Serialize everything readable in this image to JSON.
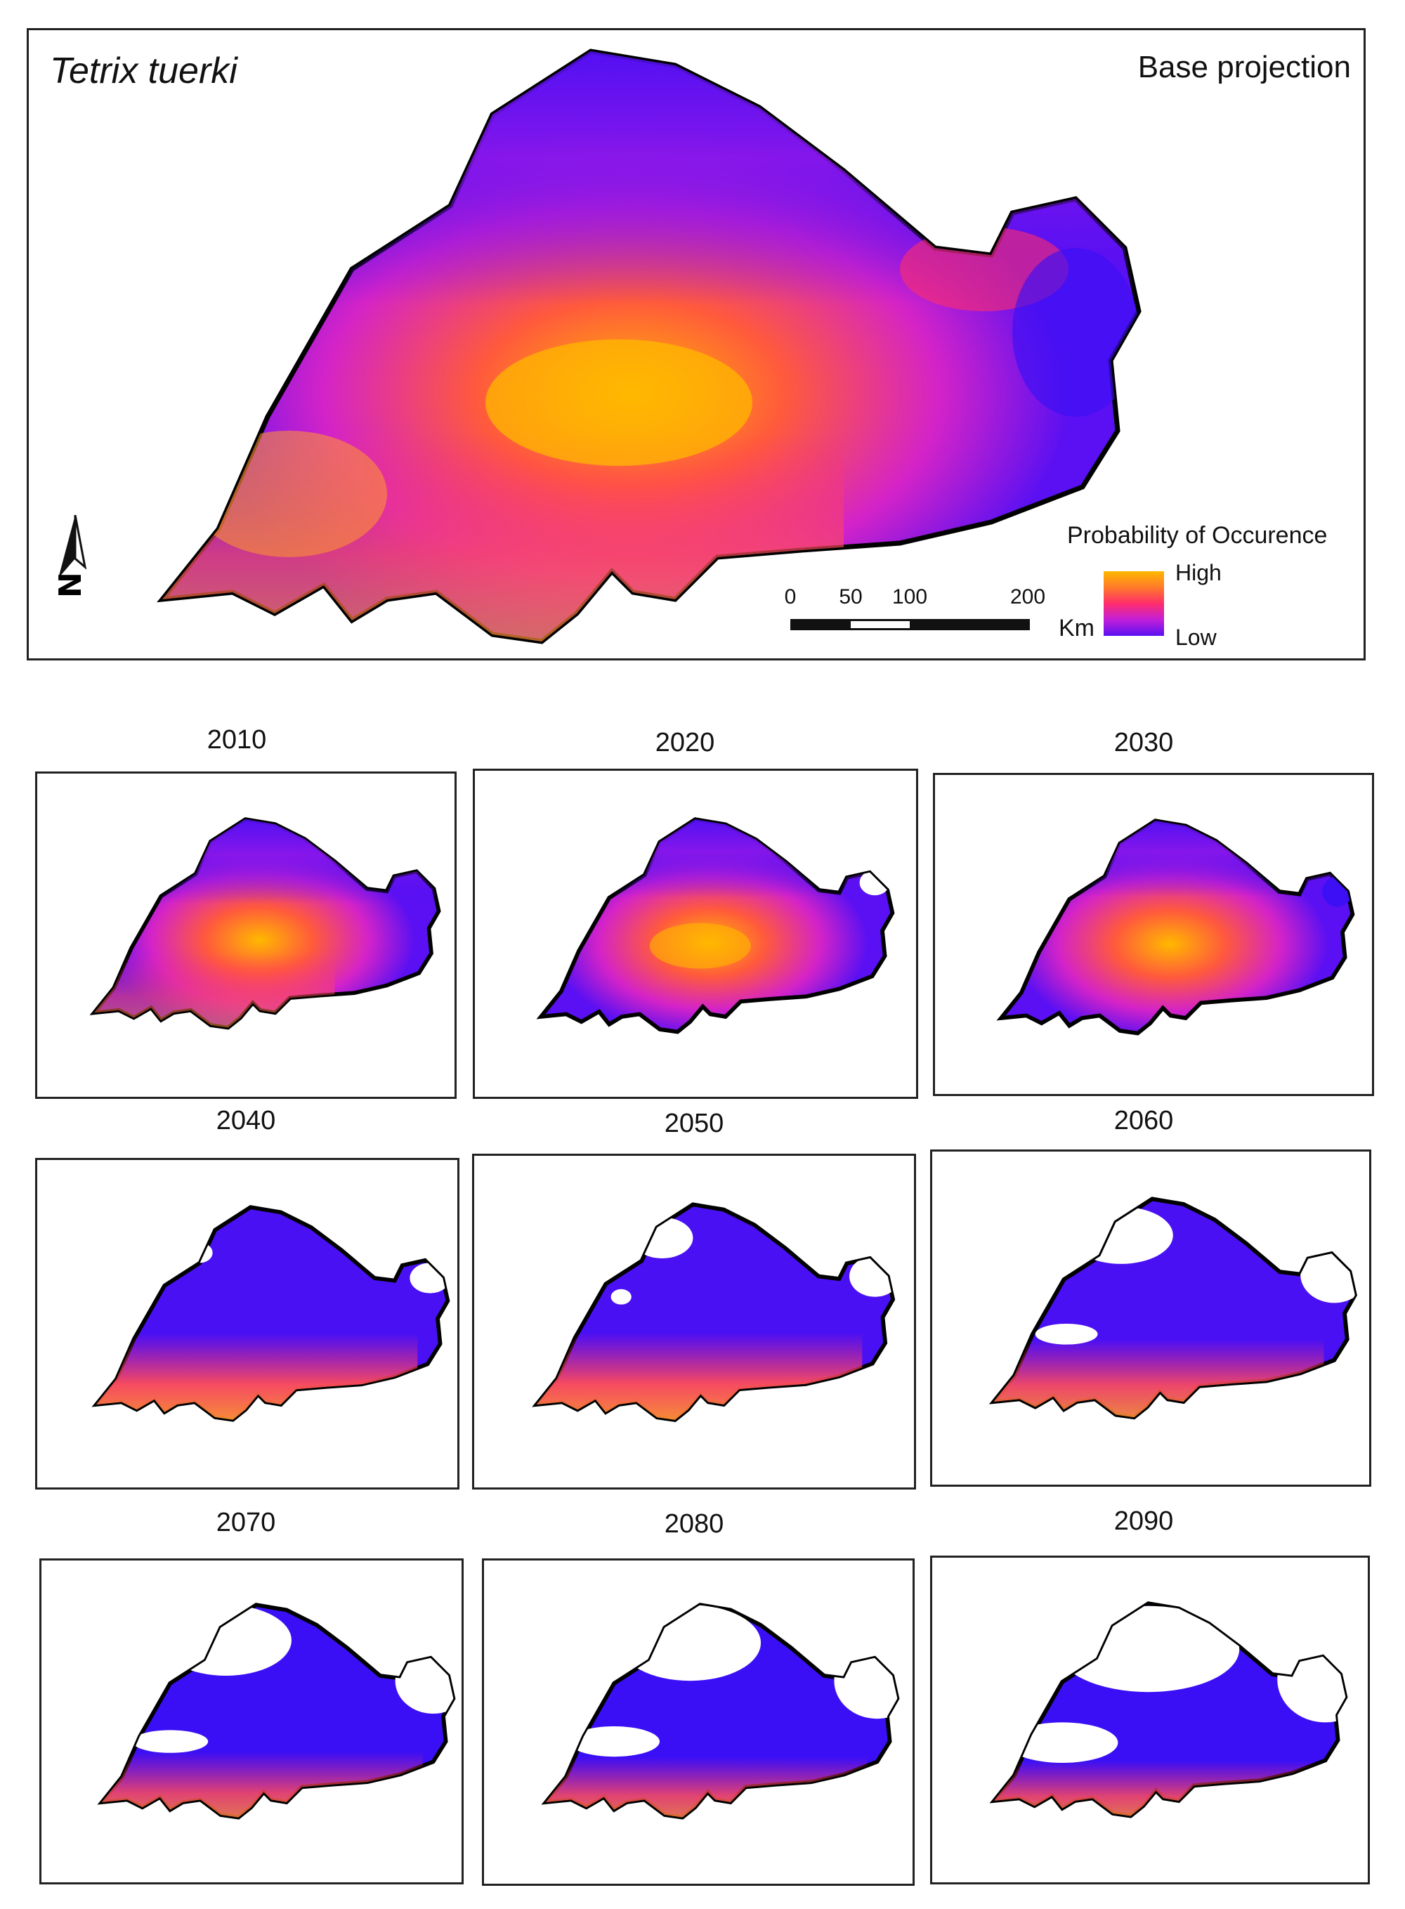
{
  "species": "Tetrix tuerki",
  "base_label": "Base projection",
  "north_label": "N",
  "legend": {
    "title": "Probability of Occurence",
    "high": "High",
    "low": "Low",
    "colors": [
      "#ffb800",
      "#ff7a2a",
      "#ff2d6b",
      "#c21fd9",
      "#5a10f2"
    ]
  },
  "scale": {
    "ticks": [
      "0",
      "50",
      "100",
      "200"
    ],
    "unit": "Km"
  },
  "maps": [
    {
      "year": "2010"
    },
    {
      "year": "2020"
    },
    {
      "year": "2030"
    },
    {
      "year": "2040"
    },
    {
      "year": "2050"
    },
    {
      "year": "2060"
    },
    {
      "year": "2070"
    },
    {
      "year": "2080"
    },
    {
      "year": "2090"
    }
  ]
}
